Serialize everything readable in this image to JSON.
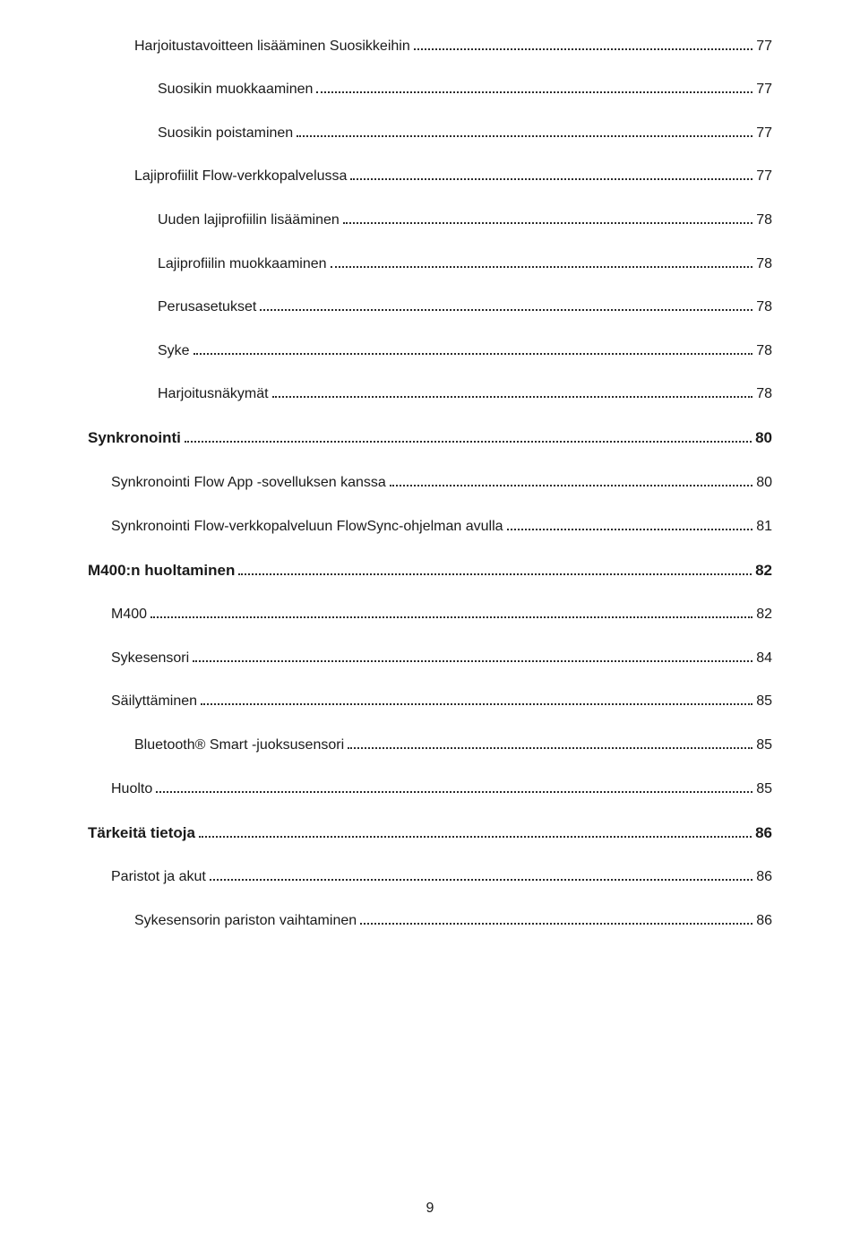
{
  "toc": [
    {
      "label": "Harjoitustavoitteen lisääminen Suosikkeihin",
      "page": "77",
      "level": 2
    },
    {
      "label": "Suosikin muokkaaminen",
      "page": "77",
      "level": 3
    },
    {
      "label": "Suosikin poistaminen",
      "page": "77",
      "level": 3
    },
    {
      "label": "Lajiprofiilit Flow-verkkopalvelussa",
      "page": "77",
      "level": 2
    },
    {
      "label": "Uuden lajiprofiilin lisääminen",
      "page": "78",
      "level": 3
    },
    {
      "label": "Lajiprofiilin muokkaaminen",
      "page": "78",
      "level": 3
    },
    {
      "label": "Perusasetukset",
      "page": "78",
      "level": 3
    },
    {
      "label": "Syke",
      "page": "78",
      "level": 3
    },
    {
      "label": "Harjoitusnäkymät",
      "page": "78",
      "level": 3
    },
    {
      "label": "Synkronointi",
      "page": "80",
      "level": 0
    },
    {
      "label": "Synkronointi Flow App -sovelluksen kanssa",
      "page": "80",
      "level": 1
    },
    {
      "label": "Synkronointi Flow-verkkopalveluun FlowSync-ohjelman avulla",
      "page": "81",
      "level": 1
    },
    {
      "label": "M400:n huoltaminen",
      "page": "82",
      "level": 0
    },
    {
      "label": "M400",
      "page": "82",
      "level": 1
    },
    {
      "label": "Sykesensori",
      "page": "84",
      "level": 1
    },
    {
      "label": "Säilyttäminen",
      "page": "85",
      "level": 1
    },
    {
      "label": "Bluetooth® Smart -juoksusensori",
      "page": "85",
      "level": 2
    },
    {
      "label": "Huolto",
      "page": "85",
      "level": 1
    },
    {
      "label": "Tärkeitä tietoja",
      "page": "86",
      "level": 0
    },
    {
      "label": "Paristot ja akut",
      "page": "86",
      "level": 1
    },
    {
      "label": "Sykesensorin pariston vaihtaminen",
      "page": "86",
      "level": 2
    }
  ],
  "page_number": "9"
}
